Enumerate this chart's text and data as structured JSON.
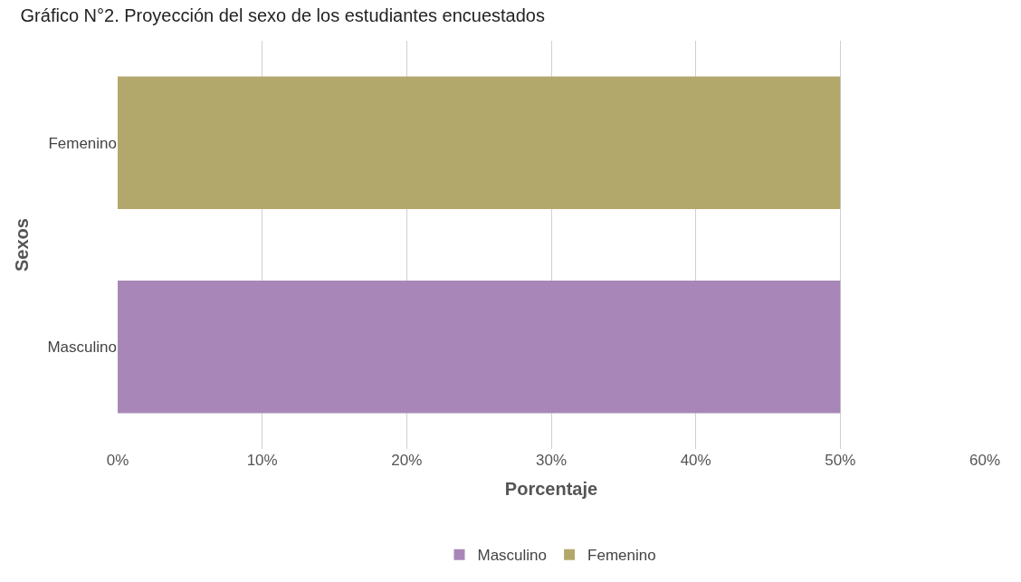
{
  "chart_data": {
    "type": "bar",
    "orientation": "horizontal",
    "title": "Gráfico N°2. Proyección del sexo de los estudiantes encuestados",
    "xlabel": "Porcentaje",
    "ylabel": "Sexos",
    "categories": [
      "Femenino",
      "Masculino"
    ],
    "series": [
      {
        "name": "Masculino",
        "color": "#a887b8",
        "values": [
          null,
          50
        ]
      },
      {
        "name": "Femenino",
        "color": "#b3a86c",
        "values": [
          50,
          null
        ]
      }
    ],
    "xlim": [
      0,
      60
    ],
    "xticks": [
      {
        "value": 0,
        "label": "0%"
      },
      {
        "value": 10,
        "label": "10%"
      },
      {
        "value": 20,
        "label": "20%"
      },
      {
        "value": 30,
        "label": "30%"
      },
      {
        "value": 40,
        "label": "40%"
      },
      {
        "value": 50,
        "label": "50%"
      },
      {
        "value": 60,
        "label": "60%"
      }
    ],
    "grid": "x",
    "legend": "bottom"
  }
}
